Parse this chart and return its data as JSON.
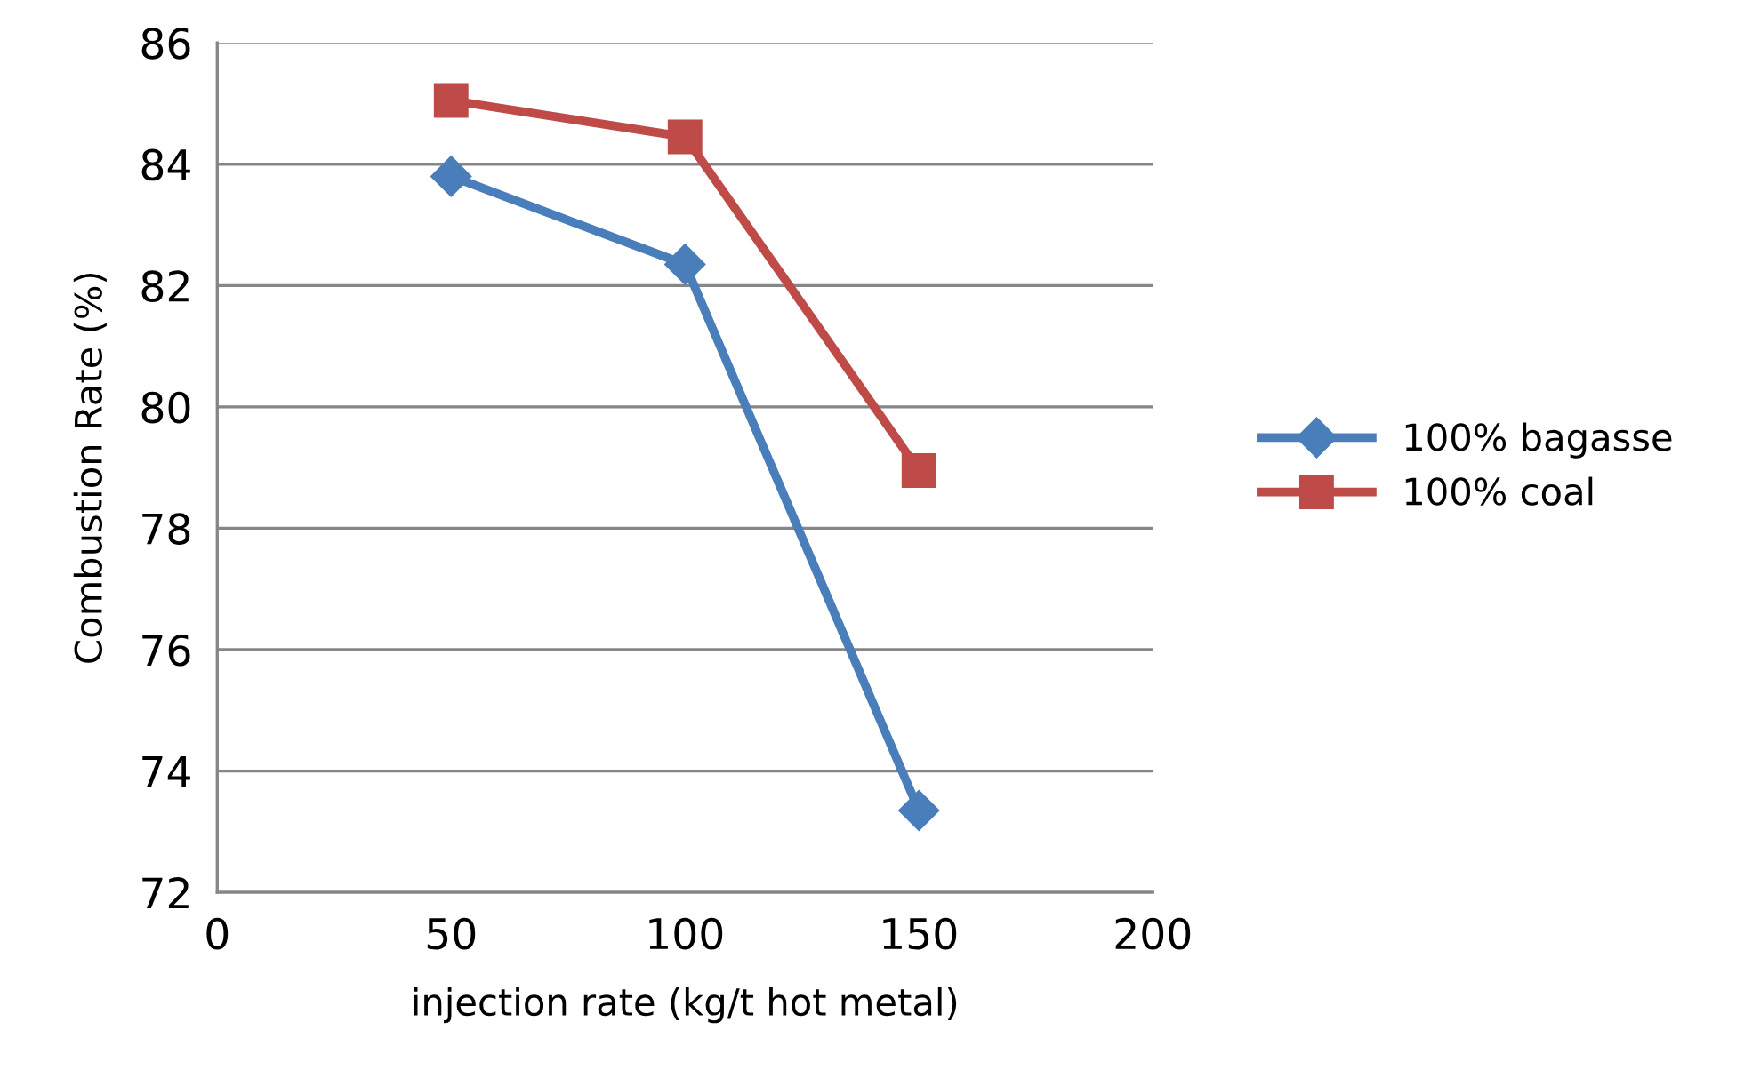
{
  "chart_data": {
    "type": "line",
    "xlabel": "injection rate (kg/t hot metal)",
    "ylabel": "Combustion Rate (%)",
    "x": [
      50,
      100,
      150
    ],
    "series": [
      {
        "name": "100% bagasse",
        "color": "#4a7ebb",
        "values": [
          83.8,
          82.35,
          73.35
        ],
        "marker": "diamond"
      },
      {
        "name": "100% coal",
        "color": "#be4b48",
        "values": [
          85.05,
          84.45,
          78.95
        ],
        "marker": "square"
      }
    ],
    "xlim": [
      0,
      200
    ],
    "xticks": [
      0,
      50,
      100,
      150,
      200
    ],
    "ylim": [
      72,
      86
    ],
    "yticks": [
      72,
      74,
      76,
      78,
      80,
      82,
      84,
      86
    ],
    "grid": "y",
    "legend": "right",
    "line_style": "solid"
  }
}
